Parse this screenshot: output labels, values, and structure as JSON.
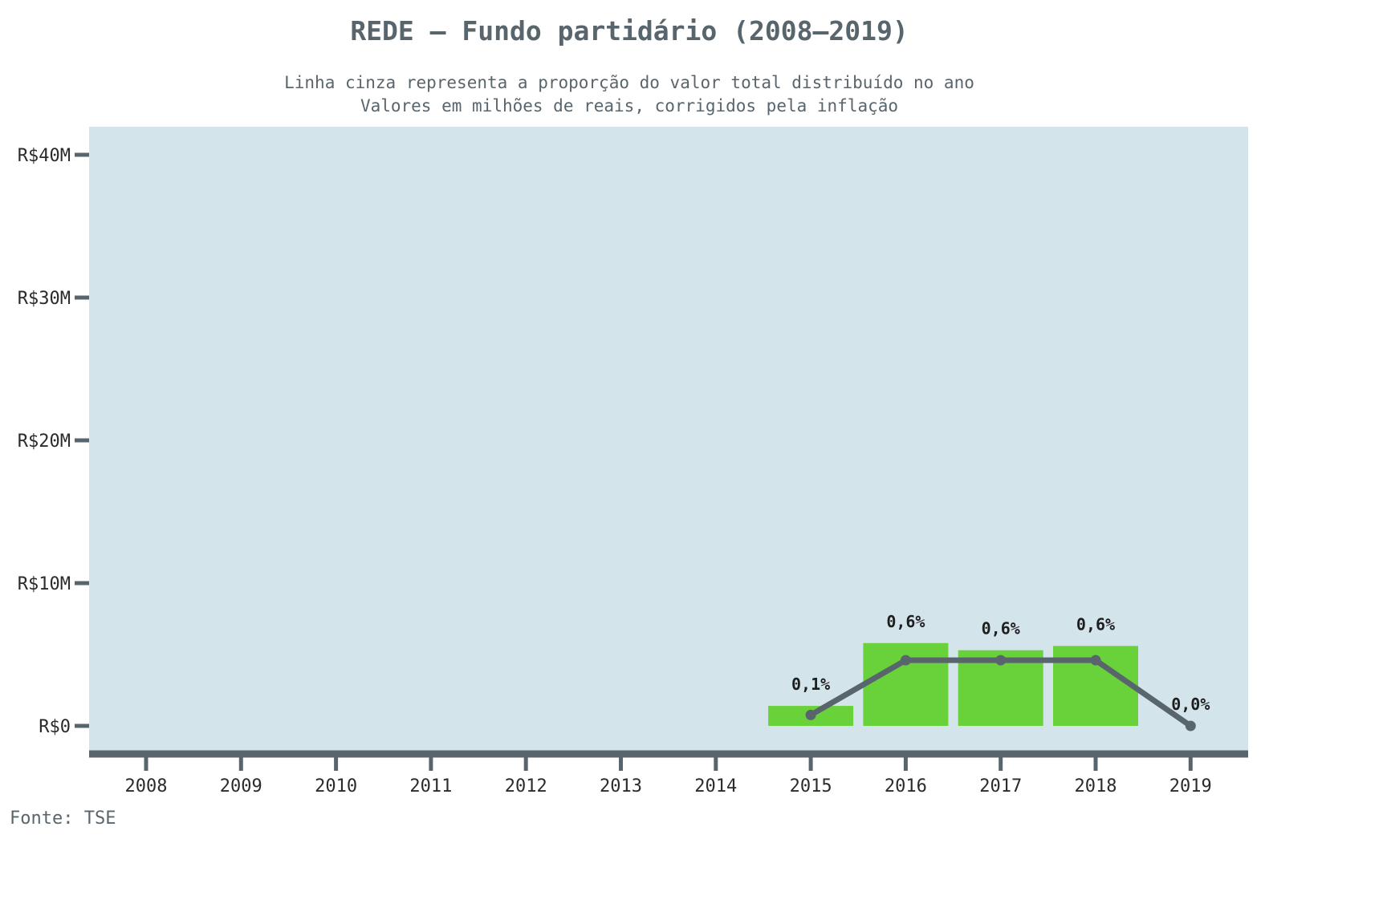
{
  "chart_data": {
    "type": "bar",
    "title": "REDE – Fundo partidário (2008–2019)",
    "subtitle_lines": [
      "Linha cinza representa a proporção do valor total distribuído no ano",
      "Valores em milhões de reais, corrigidos pela inflação"
    ],
    "source": "Fonte: TSE",
    "categories": [
      "2008",
      "2009",
      "2010",
      "2011",
      "2012",
      "2013",
      "2014",
      "2015",
      "2016",
      "2017",
      "2018",
      "2019"
    ],
    "series": [
      {
        "type": "bar",
        "values": [
          null,
          null,
          null,
          null,
          null,
          null,
          null,
          1.4,
          5.8,
          5.3,
          5.6,
          null
        ]
      },
      {
        "type": "line",
        "values": [
          null,
          null,
          null,
          null,
          null,
          null,
          null,
          0.1,
          0.6,
          0.6,
          0.6,
          0.0
        ],
        "labels": [
          null,
          null,
          null,
          null,
          null,
          null,
          null,
          "0,1%",
          "0,6%",
          "0,6%",
          "0,6%",
          "0,0%"
        ]
      }
    ],
    "y_ticks": [
      {
        "value": 0,
        "label": "R$0"
      },
      {
        "value": 10,
        "label": "R$10M"
      },
      {
        "value": 20,
        "label": "R$20M"
      },
      {
        "value": 30,
        "label": "R$30M"
      },
      {
        "value": 40,
        "label": "R$40M"
      }
    ],
    "ylim": [
      -2,
      42
    ],
    "line_scale_note_units": "percent",
    "grid": false,
    "colors": {
      "panel": "#d4e4eb",
      "bar": "#69d13a",
      "line": "#59656c",
      "axis": "#59656c",
      "text": "#59656c",
      "label": "#1e1e1e"
    }
  }
}
